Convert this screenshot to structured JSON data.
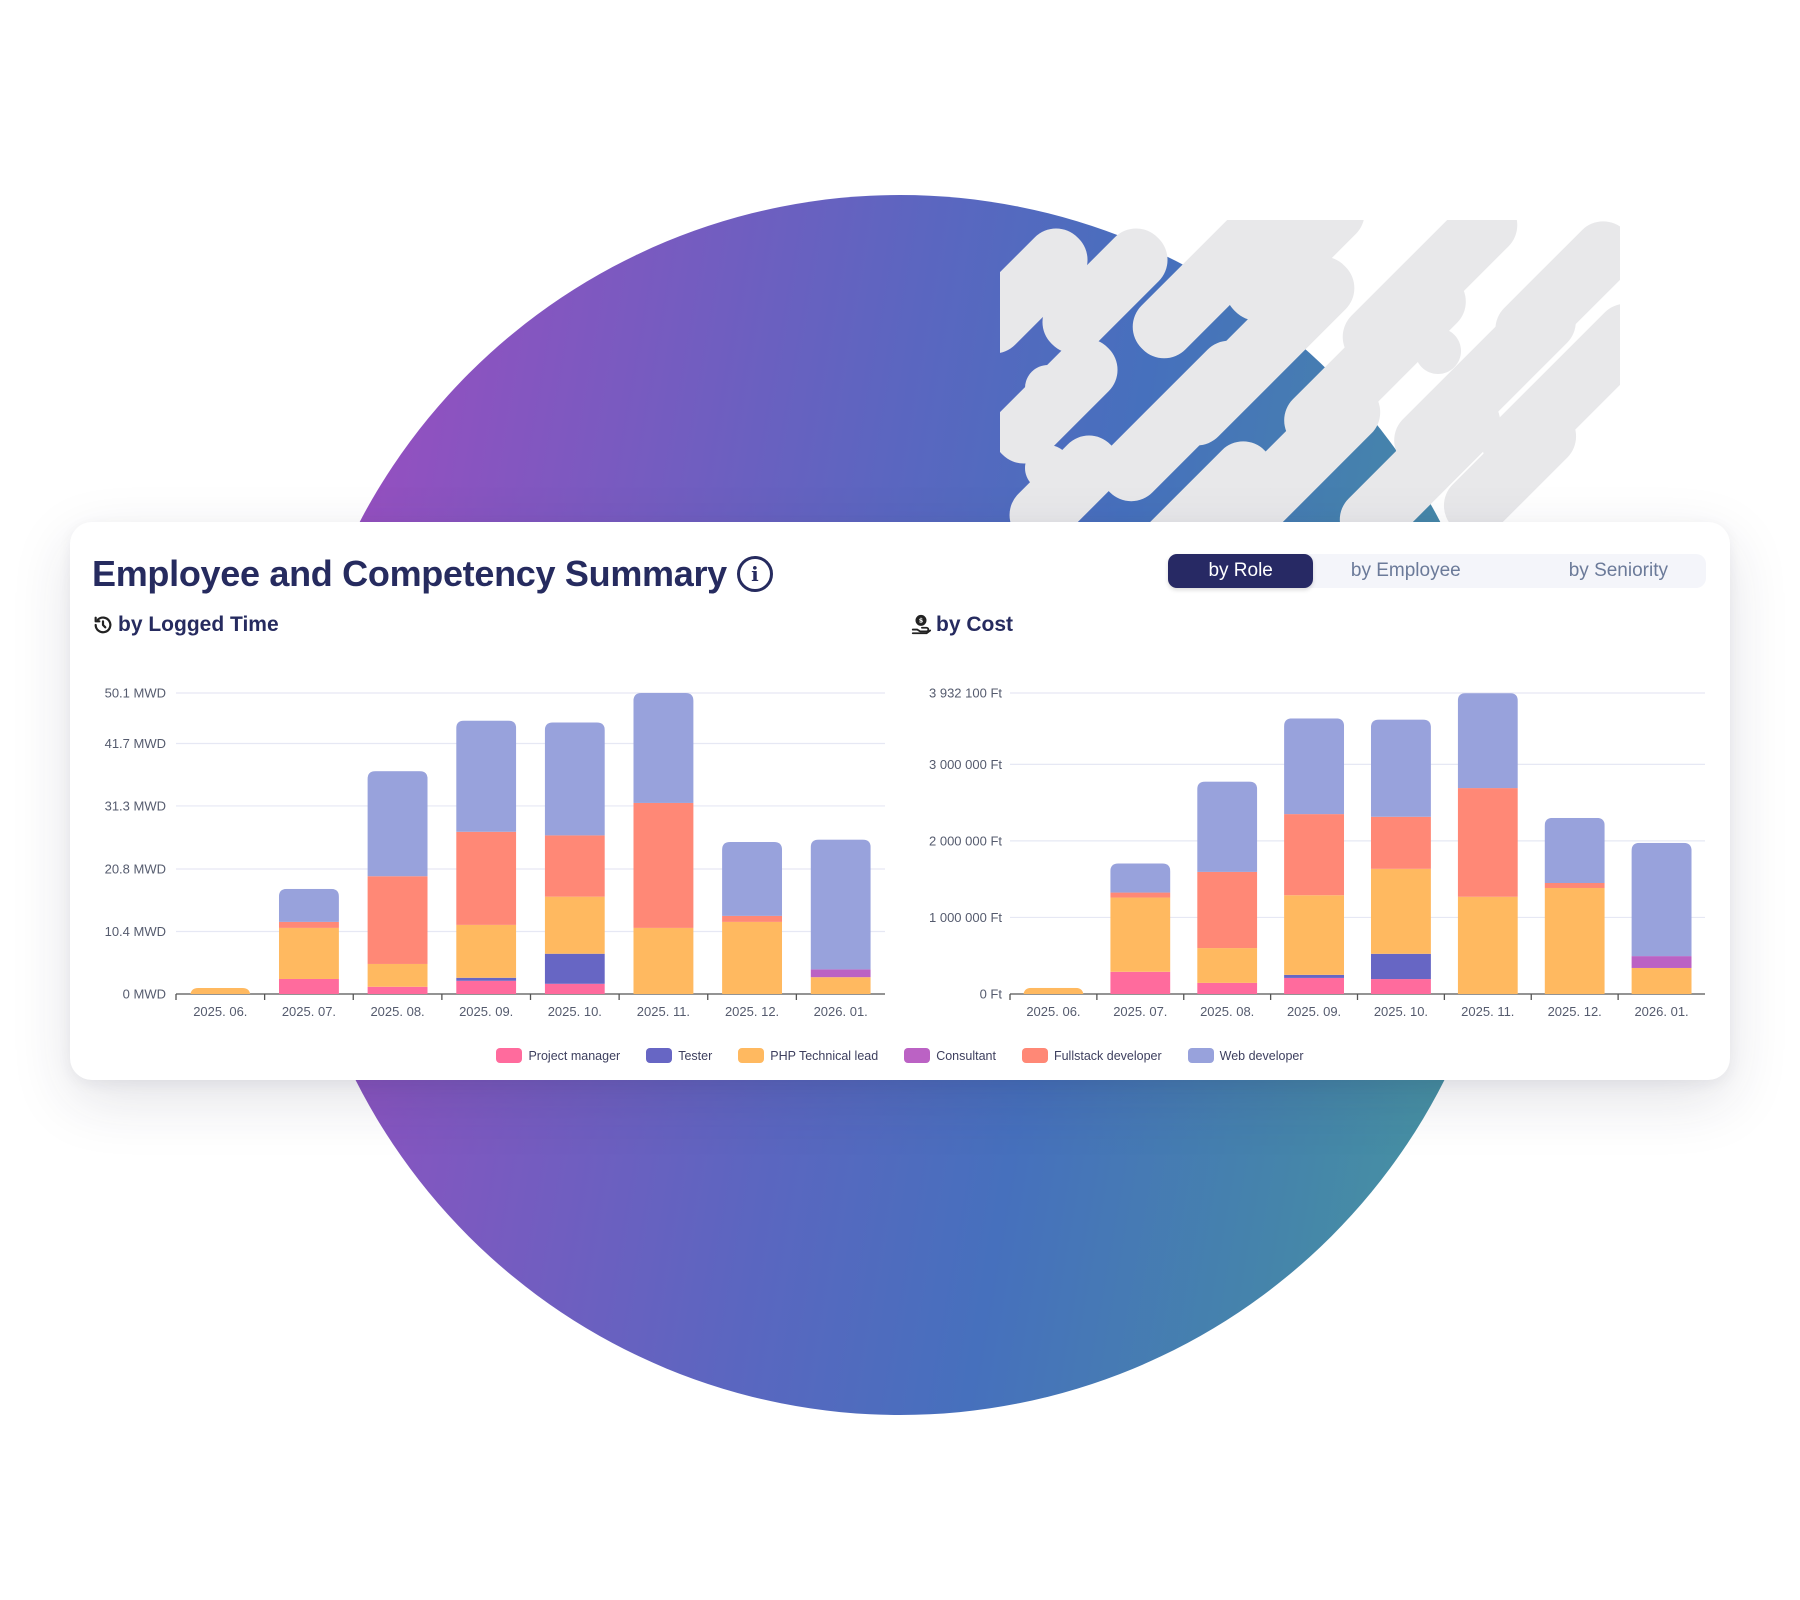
{
  "card": {
    "title": "Employee and Competency Summary",
    "info_icon": "info-circle-icon",
    "view_toggle": {
      "options": [
        "by Role",
        "by Employee",
        "by Seniority"
      ],
      "selected": "by Role"
    }
  },
  "legend": [
    {
      "label": "Project manager",
      "color": "#ff6b9d"
    },
    {
      "label": "Tester",
      "color": "#6766c4"
    },
    {
      "label": "PHP Technical lead",
      "color": "#ffb960"
    },
    {
      "label": "Consultant",
      "color": "#bb62c4"
    },
    {
      "label": "Fullstack developer",
      "color": "#ff8876"
    },
    {
      "label": "Web developer",
      "color": "#98a2dc"
    }
  ],
  "chart_data": [
    {
      "type": "bar",
      "stacked": true,
      "title": "by Logged Time",
      "title_icon": "history-clock-icon",
      "xlabel": "",
      "ylabel": "",
      "unit": "MWD",
      "categories": [
        "2025. 06.",
        "2025. 07.",
        "2025. 08.",
        "2025. 09.",
        "2025. 10.",
        "2025. 11.",
        "2025. 12.",
        "2026. 01."
      ],
      "y_ticks": [
        "0 MWD",
        "10.4 MWD",
        "20.8 MWD",
        "31.3 MWD",
        "41.7 MWD",
        "50.1 MWD"
      ],
      "y_tick_values": [
        0,
        10.4,
        20.8,
        31.3,
        41.7,
        50.1
      ],
      "ylim": [
        0,
        50.1
      ],
      "grid": true,
      "legend_position": "bottom",
      "series": [
        {
          "name": "Project manager",
          "values": [
            0,
            2.5,
            1.2,
            2.2,
            1.7,
            0,
            0,
            0
          ]
        },
        {
          "name": "Tester",
          "values": [
            0,
            0,
            0,
            0.5,
            5.0,
            0,
            0,
            0
          ]
        },
        {
          "name": "PHP Technical lead",
          "values": [
            1.0,
            8.5,
            3.8,
            8.8,
            9.5,
            11.0,
            12.0,
            2.8
          ]
        },
        {
          "name": "Consultant",
          "values": [
            0,
            0,
            0,
            0,
            0,
            0,
            0,
            1.3
          ]
        },
        {
          "name": "Fullstack developer",
          "values": [
            0,
            1.0,
            14.6,
            15.5,
            10.2,
            20.8,
            1.0,
            0
          ]
        },
        {
          "name": "Web developer",
          "values": [
            0,
            5.5,
            17.5,
            18.5,
            18.8,
            18.3,
            12.3,
            21.6
          ]
        }
      ]
    },
    {
      "type": "bar",
      "stacked": true,
      "title": "by Cost",
      "title_icon": "hand-coin-icon",
      "xlabel": "",
      "ylabel": "",
      "unit": "Ft",
      "categories": [
        "2025. 06.",
        "2025. 07.",
        "2025. 08.",
        "2025. 09.",
        "2025. 10.",
        "2025. 11.",
        "2025. 12.",
        "2026. 01."
      ],
      "y_ticks": [
        "0  Ft",
        "1 000 000  Ft",
        "2 000 000  Ft",
        "3 000 000  Ft",
        "3 932 100  Ft"
      ],
      "y_tick_values": [
        0,
        1000000,
        2000000,
        3000000,
        3932100
      ],
      "ylim": [
        0,
        3932100
      ],
      "grid": true,
      "legend_position": "bottom",
      "series": [
        {
          "name": "Project manager",
          "values": [
            0,
            290000,
            145000,
            210000,
            195000,
            0,
            0,
            0
          ]
        },
        {
          "name": "Tester",
          "values": [
            0,
            0,
            0,
            40000,
            330000,
            0,
            0,
            0
          ]
        },
        {
          "name": "PHP Technical lead",
          "values": [
            80000,
            970000,
            455000,
            1040000,
            1110000,
            1270000,
            1385000,
            340000
          ]
        },
        {
          "name": "Consultant",
          "values": [
            0,
            0,
            0,
            0,
            0,
            0,
            0,
            155000
          ]
        },
        {
          "name": "Fullstack developer",
          "values": [
            0,
            65000,
            995000,
            1060000,
            680000,
            1420000,
            65000,
            0
          ]
        },
        {
          "name": "Web developer",
          "values": [
            0,
            380000,
            1180000,
            1250000,
            1270000,
            1240000,
            850000,
            1480000
          ]
        }
      ]
    }
  ]
}
